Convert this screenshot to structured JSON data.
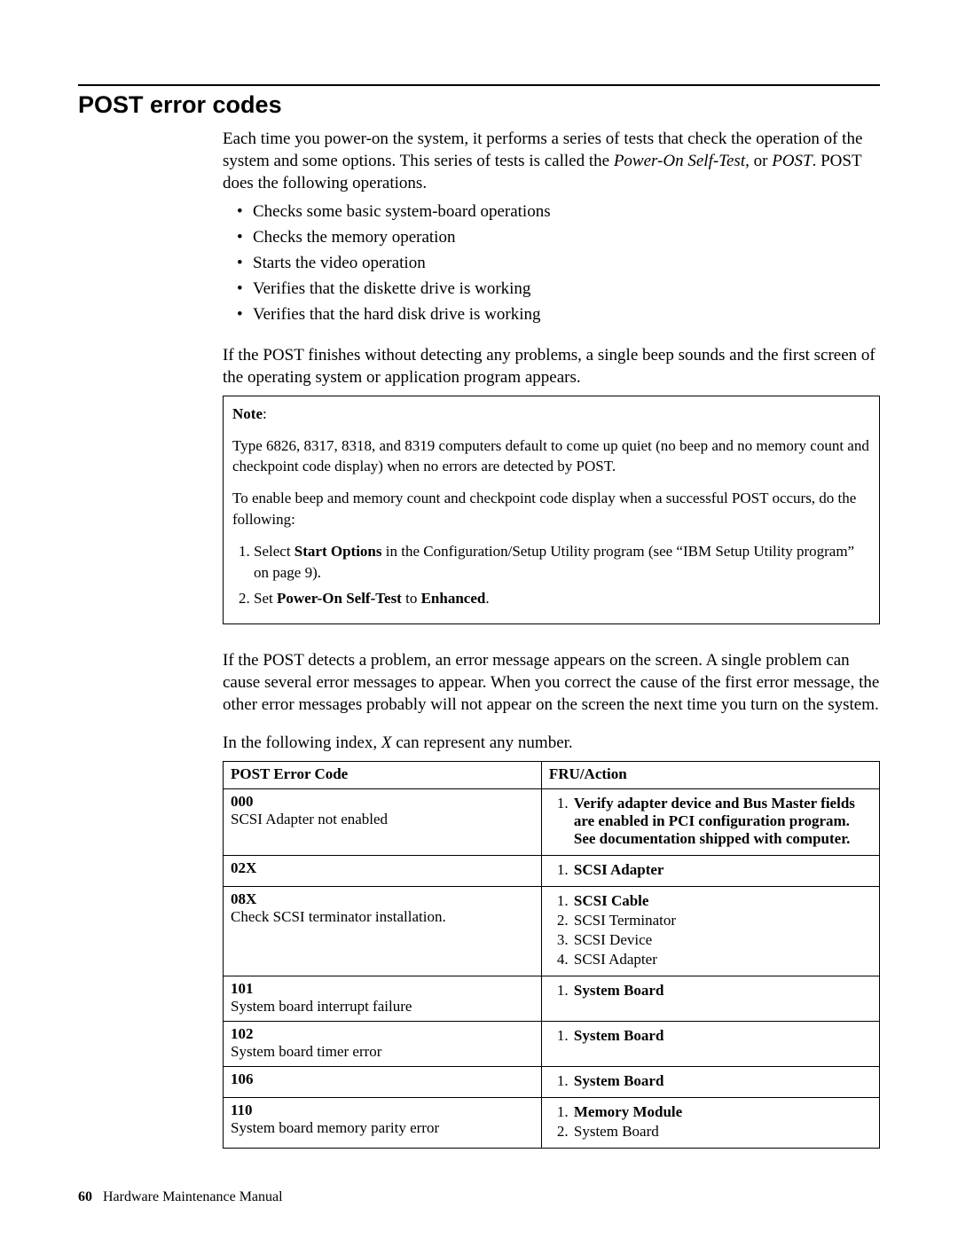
{
  "section_title": "POST error codes",
  "intro": {
    "p1a": "Each time you power-on the system, it performs a series of tests that check the operation of the system and some options. This series of tests is called the ",
    "p1_italic": "Power-On Self-Test",
    "p1b": ", or ",
    "p1_italic2": "POST",
    "p1c": ". POST does the following operations."
  },
  "bullets": [
    "Checks some basic system-board operations",
    "Checks the memory operation",
    "Starts the video operation",
    "Verifies that the diskette drive is working",
    "Verifies that the hard disk drive is working"
  ],
  "para_after_bullets": "If the POST finishes without detecting any problems, a single beep sounds and the first screen of the operating system or application program appears.",
  "note": {
    "label": "Note",
    "p1": "Type 6826, 8317, 8318, and 8319 computers default to come up quiet (no beep and no memory count and checkpoint code display) when no errors are detected by POST.",
    "p2": "To enable beep and memory count and checkpoint code display when a successful POST occurs, do the following:",
    "ol1_a": "Select ",
    "ol1_bold": "Start Options",
    "ol1_b": " in the Configuration/Setup Utility program (see “IBM Setup Utility program” on page 9).",
    "ol2_a": "Set ",
    "ol2_bold1": "Power-On Self-Test",
    "ol2_b": " to ",
    "ol2_bold2": "Enhanced",
    "ol2_c": "."
  },
  "para_after_note": "If the POST detects a problem, an error message appears on the screen. A single problem can cause several error messages to appear. When you correct the cause of the first error message, the other error messages probably will not appear on the screen the next time you turn on the system.",
  "index_intro_a": "In the following index, ",
  "index_intro_italic": "X",
  "index_intro_b": " can represent any number.",
  "table": {
    "header_code": "POST Error Code",
    "header_action": "FRU/Action",
    "rows": [
      {
        "code_bold": "000",
        "code_desc": "SCSI Adapter not enabled",
        "actions": [
          {
            "text": "Verify adapter device and Bus Master fields are enabled in PCI configuration program. See documentation shipped with computer.",
            "bold": true
          }
        ]
      },
      {
        "code_bold": "02X",
        "code_desc": "",
        "actions": [
          {
            "text": "SCSI Adapter",
            "bold": true
          }
        ]
      },
      {
        "code_bold": "08X",
        "code_desc": "Check SCSI terminator installation.",
        "actions": [
          {
            "text": "SCSI Cable",
            "bold": true
          },
          {
            "text": "SCSI Terminator",
            "bold": false
          },
          {
            "text": "SCSI Device",
            "bold": false
          },
          {
            "text": "SCSI Adapter",
            "bold": false
          }
        ]
      },
      {
        "code_bold": "101",
        "code_desc": "System board interrupt failure",
        "actions": [
          {
            "text": "System Board",
            "bold": true
          }
        ]
      },
      {
        "code_bold": "102",
        "code_desc": "System board timer error",
        "actions": [
          {
            "text": "System Board",
            "bold": true
          }
        ]
      },
      {
        "code_bold": "106",
        "code_desc": "",
        "actions": [
          {
            "text": "System Board",
            "bold": true
          }
        ]
      },
      {
        "code_bold": "110",
        "code_desc": "System board memory parity error",
        "actions": [
          {
            "text": "Memory Module",
            "bold": true
          },
          {
            "text": "System Board",
            "bold": false
          }
        ]
      }
    ]
  },
  "footer": {
    "page_number": "60",
    "doc_title": "Hardware Maintenance Manual"
  }
}
